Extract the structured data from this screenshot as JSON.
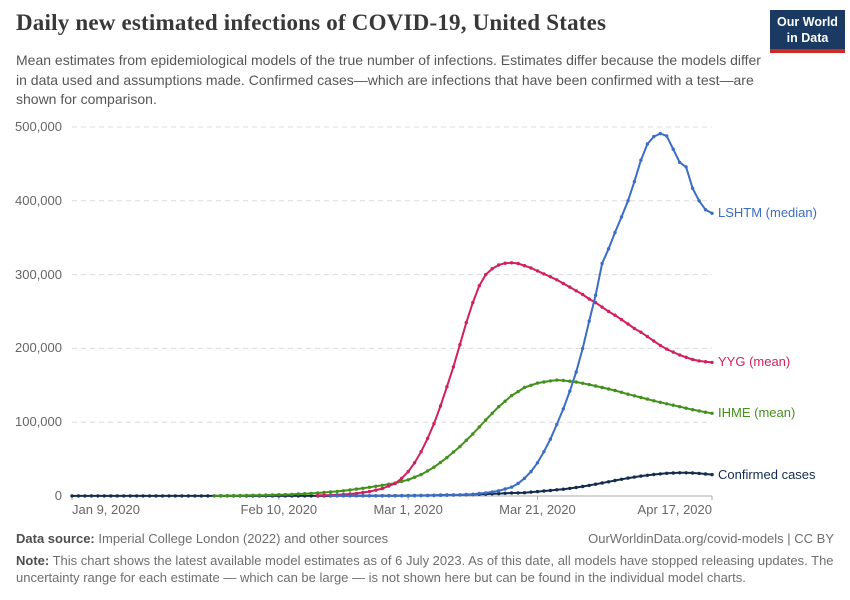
{
  "header": {
    "title": "Daily new estimated infections of COVID-19, United States",
    "subtitle": "Mean estimates from epidemiological models of the true number of infections. Estimates differ because the models differ in data used and assumptions made. Confirmed cases—which are infections that have been confirmed with a test—are shown for comparison.",
    "logo": {
      "line1": "Our World",
      "line2": "in Data",
      "bg_color": "#1B3A63",
      "stripe_color": "#CE2B24"
    }
  },
  "chart_data": {
    "type": "line",
    "title": "Daily new estimated infections of COVID-19, United States",
    "x_unit": "days since Jan 9, 2020",
    "x_range_days": [
      0,
      99
    ],
    "ylim": [
      0,
      500000
    ],
    "grid": "horizontal dashed",
    "markers": "daily dots on lines",
    "legend_position": "labels at right end of each line",
    "yticks": [
      {
        "value": 0,
        "label": "0"
      },
      {
        "value": 100000,
        "label": "100,000"
      },
      {
        "value": 200000,
        "label": "200,000"
      },
      {
        "value": 300000,
        "label": "300,000"
      },
      {
        "value": 400000,
        "label": "400,000"
      },
      {
        "value": 500000,
        "label": "500,000"
      }
    ],
    "xticks": [
      {
        "day": 0,
        "label": "Jan 9, 2020",
        "align": "left"
      },
      {
        "day": 32,
        "label": "Feb 10, 2020",
        "align": "center"
      },
      {
        "day": 52,
        "label": "Mar 1, 2020",
        "align": "center"
      },
      {
        "day": 72,
        "label": "Mar 21, 2020",
        "align": "center"
      },
      {
        "day": 99,
        "label": "Apr 17, 2020",
        "align": "right"
      }
    ],
    "series": [
      {
        "name": "Confirmed cases",
        "color": "#132C4E",
        "points": [
          [
            0,
            100
          ],
          [
            10,
            100
          ],
          [
            20,
            100
          ],
          [
            30,
            120
          ],
          [
            35,
            150
          ],
          [
            40,
            200
          ],
          [
            45,
            260
          ],
          [
            50,
            400
          ],
          [
            54,
            700
          ],
          [
            56,
            1000
          ],
          [
            58,
            1400
          ],
          [
            60,
            1500
          ],
          [
            62,
            2000
          ],
          [
            64,
            2600
          ],
          [
            66,
            3300
          ],
          [
            68,
            4000
          ],
          [
            70,
            4500
          ],
          [
            72,
            6000
          ],
          [
            74,
            7500
          ],
          [
            76,
            9200
          ],
          [
            78,
            11500
          ],
          [
            80,
            14300
          ],
          [
            82,
            17600
          ],
          [
            84,
            21000
          ],
          [
            86,
            24300
          ],
          [
            88,
            27000
          ],
          [
            90,
            29200
          ],
          [
            92,
            30800
          ],
          [
            94,
            31500
          ],
          [
            95,
            31500
          ],
          [
            96,
            31200
          ],
          [
            97,
            30600
          ],
          [
            98,
            29800
          ],
          [
            99,
            29000
          ]
        ]
      },
      {
        "name": "IHME (mean)",
        "color": "#42911D",
        "points": [
          [
            22,
            300
          ],
          [
            26,
            600
          ],
          [
            30,
            1200
          ],
          [
            34,
            2200
          ],
          [
            38,
            4000
          ],
          [
            42,
            7000
          ],
          [
            45,
            10500
          ],
          [
            48,
            14500
          ],
          [
            50,
            17500
          ],
          [
            52,
            22000
          ],
          [
            54,
            29000
          ],
          [
            56,
            39000
          ],
          [
            58,
            52000
          ],
          [
            60,
            67000
          ],
          [
            62,
            84000
          ],
          [
            64,
            103000
          ],
          [
            66,
            121000
          ],
          [
            68,
            136000
          ],
          [
            70,
            147000
          ],
          [
            72,
            153000
          ],
          [
            74,
            156000
          ],
          [
            75,
            157000
          ],
          [
            76,
            156500
          ],
          [
            78,
            154500
          ],
          [
            80,
            151000
          ],
          [
            82,
            147000
          ],
          [
            84,
            143000
          ],
          [
            86,
            138000
          ],
          [
            88,
            133500
          ],
          [
            90,
            129000
          ],
          [
            92,
            125000
          ],
          [
            94,
            121000
          ],
          [
            96,
            117000
          ],
          [
            98,
            113500
          ],
          [
            99,
            112000
          ]
        ]
      },
      {
        "name": "YYG (mean)",
        "color": "#D2205F",
        "points": [
          [
            38,
            800
          ],
          [
            40,
            1200
          ],
          [
            42,
            2000
          ],
          [
            44,
            3500
          ],
          [
            46,
            6000
          ],
          [
            48,
            10000
          ],
          [
            50,
            17000
          ],
          [
            51,
            24000
          ],
          [
            52,
            33000
          ],
          [
            53,
            45000
          ],
          [
            54,
            60000
          ],
          [
            55,
            78000
          ],
          [
            56,
            98000
          ],
          [
            57,
            122000
          ],
          [
            58,
            148000
          ],
          [
            59,
            175000
          ],
          [
            60,
            205000
          ],
          [
            61,
            235000
          ],
          [
            62,
            262000
          ],
          [
            63,
            285000
          ],
          [
            64,
            300000
          ],
          [
            65,
            308000
          ],
          [
            66,
            313000
          ],
          [
            67,
            315500
          ],
          [
            68,
            316000
          ],
          [
            69,
            315000
          ],
          [
            70,
            312000
          ],
          [
            71,
            309000
          ],
          [
            72,
            305000
          ],
          [
            73,
            301000
          ],
          [
            74,
            297000
          ],
          [
            75,
            293000
          ],
          [
            76,
            288000
          ],
          [
            77,
            283000
          ],
          [
            78,
            278000
          ],
          [
            79,
            273000
          ],
          [
            80,
            267000
          ],
          [
            81,
            262000
          ],
          [
            82,
            256000
          ],
          [
            83,
            250000
          ],
          [
            84,
            245000
          ],
          [
            85,
            239000
          ],
          [
            86,
            233000
          ],
          [
            87,
            227000
          ],
          [
            88,
            222000
          ],
          [
            89,
            216000
          ],
          [
            90,
            210000
          ],
          [
            91,
            204000
          ],
          [
            92,
            199000
          ],
          [
            93,
            195000
          ],
          [
            94,
            191000
          ],
          [
            95,
            188000
          ],
          [
            96,
            185000
          ],
          [
            97,
            183000
          ],
          [
            98,
            182000
          ],
          [
            99,
            181000
          ]
        ]
      },
      {
        "name": "LSHTM (median)",
        "color": "#3C6DC6",
        "points": [
          [
            40,
            300
          ],
          [
            44,
            300
          ],
          [
            48,
            350
          ],
          [
            52,
            400
          ],
          [
            54,
            500
          ],
          [
            56,
            700
          ],
          [
            58,
            1000
          ],
          [
            60,
            1500
          ],
          [
            62,
            2500
          ],
          [
            64,
            4200
          ],
          [
            66,
            7000
          ],
          [
            68,
            12000
          ],
          [
            69,
            17000
          ],
          [
            70,
            24000
          ],
          [
            71,
            33000
          ],
          [
            72,
            45000
          ],
          [
            73,
            60000
          ],
          [
            74,
            77000
          ],
          [
            75,
            97000
          ],
          [
            76,
            118000
          ],
          [
            77,
            142000
          ],
          [
            78,
            168000
          ],
          [
            79,
            200000
          ],
          [
            80,
            237000
          ],
          [
            81,
            272000
          ],
          [
            82,
            315000
          ],
          [
            83,
            335000
          ],
          [
            84,
            357000
          ],
          [
            85,
            378000
          ],
          [
            86,
            400000
          ],
          [
            87,
            426000
          ],
          [
            88,
            455000
          ],
          [
            89,
            477000
          ],
          [
            90,
            487000
          ],
          [
            91,
            491000
          ],
          [
            92,
            488000
          ],
          [
            93,
            470000
          ],
          [
            94,
            452000
          ],
          [
            95,
            446000
          ],
          [
            96,
            417000
          ],
          [
            97,
            400000
          ],
          [
            98,
            388000
          ],
          [
            99,
            383000
          ]
        ]
      }
    ]
  },
  "footer": {
    "source_label": "Data source:",
    "source_text": "Imperial College London (2022) and other sources",
    "link": "OurWorldinData.org/covid-models | CC BY",
    "note_label": "Note:",
    "note_text": "This chart shows the latest available model estimates as of 6 July 2023. As of this date, all models have stopped releasing updates. The uncertainty range for each estimate — which can be large — is not shown here but can be found in the individual model charts."
  }
}
